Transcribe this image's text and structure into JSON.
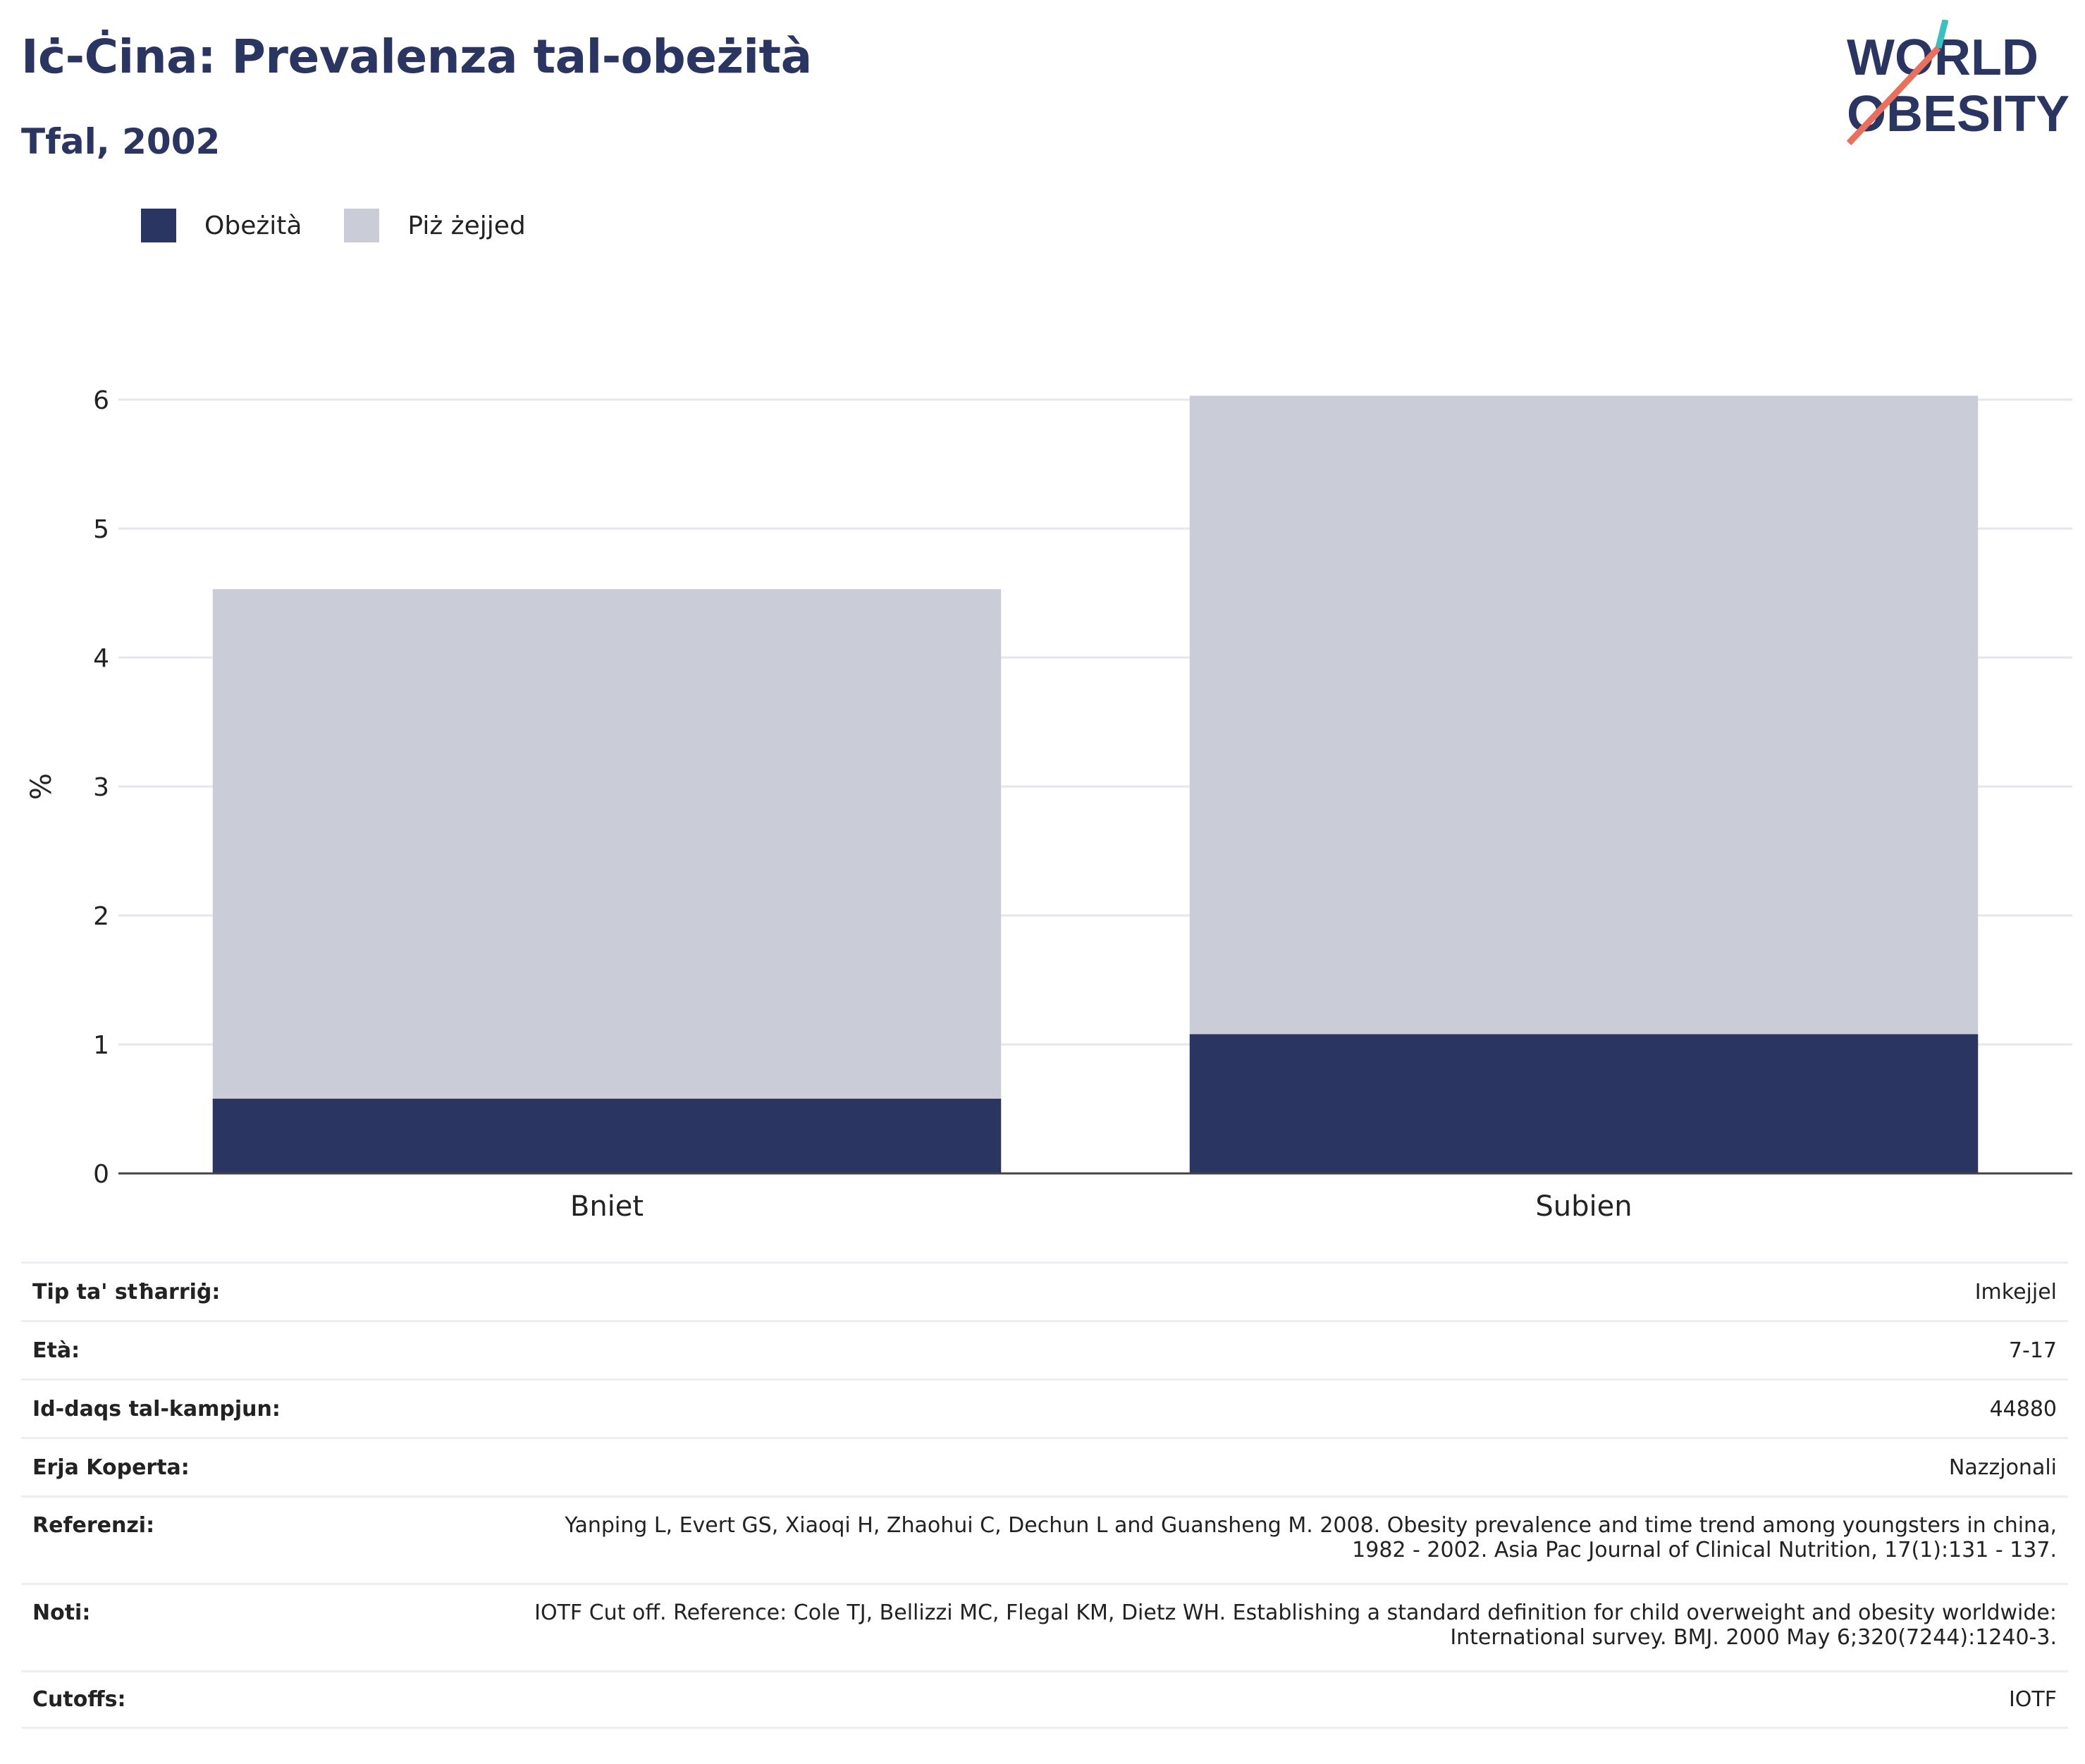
{
  "header": {
    "title": "Iċ-Ċina: Prevalenza tal-obeżità",
    "subtitle": "Tfal, 2002"
  },
  "logo": {
    "line1": "WORLD",
    "line2": "OBESITY"
  },
  "colors": {
    "obese": "#2b3562",
    "overweight": "#caccd8",
    "title": "#2b3562"
  },
  "chart_data": {
    "type": "bar",
    "stacked": true,
    "categories": [
      "Bniet",
      "Subien"
    ],
    "series": [
      {
        "name": "Obeżità",
        "values": [
          0.58,
          1.08
        ]
      },
      {
        "name": "Piż żejjed",
        "values": [
          3.95,
          4.95
        ]
      }
    ],
    "totals": [
      4.53,
      6.03
    ],
    "ylabel": "%",
    "ylim": [
      0,
      6.2
    ],
    "yticks": [
      "0",
      "1",
      "2",
      "3",
      "4",
      "5",
      "6"
    ],
    "grid": true,
    "legend": "top-left"
  },
  "meta": {
    "rows": [
      {
        "label": "Tip ta' stħarriġ:",
        "value": "Imkejjel"
      },
      {
        "label": "Età:",
        "value": "7-17"
      },
      {
        "label": "Id-daqs tal-kampjun:",
        "value": "44880"
      },
      {
        "label": "Erja Koperta:",
        "value": "Nazzjonali"
      },
      {
        "label": "Referenzi:",
        "value": "Yanping L, Evert GS, Xiaoqi H, Zhaohui C, Dechun L and Guansheng M. 2008. Obesity prevalence and time trend among youngsters in china, 1982 - 2002. Asia Pac Journal of Clinical Nutrition, 17(1):131 - 137."
      },
      {
        "label": "Noti:",
        "value": "IOTF Cut off. Reference: Cole TJ, Bellizzi MC, Flegal KM, Dietz WH. Establishing a standard definition for child overweight and obesity worldwide: International survey. BMJ. 2000 May 6;320(7244):1240-3."
      },
      {
        "label": "Cutoffs:",
        "value": "IOTF"
      }
    ]
  }
}
